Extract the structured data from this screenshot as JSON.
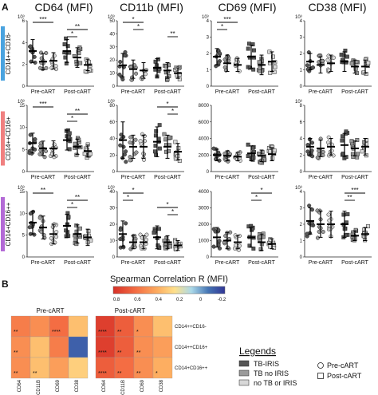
{
  "panel_labels": {
    "a": "A",
    "b": "B"
  },
  "column_titles": [
    "CD64 (MFI)",
    "CD11b (MFI)",
    "CD69 (MFI)",
    "CD38 (MFI)"
  ],
  "row_labels": [
    "CD14++CD16-",
    "CD14++CD16+",
    "CD14+CD16++"
  ],
  "row_label_colors": [
    "#4aa3df",
    "#f08080",
    "#b36ad6"
  ],
  "group_labels": [
    "Pre-cART",
    "Post-cART"
  ],
  "heatmap": {
    "title": "Spearman Correlation R (MFI)",
    "scale_ticks": [
      "0.8",
      "0.6",
      "0.4",
      "0.2",
      "0",
      "-0.2"
    ],
    "pre_label": "Pre-cART",
    "post_label": "Post-cART",
    "markers": [
      "CD64",
      "CD11B",
      "CD69",
      "CD38"
    ],
    "subsets": [
      "CD14++CD16-",
      "CD14++CD16+",
      "CD14+CD16++"
    ]
  },
  "legend": {
    "title": "Legends",
    "items": [
      "TB-IRIS",
      "TB no IRIS",
      "no TB or IRIS"
    ],
    "shape_items": [
      "Pre-cART",
      "Post-cART"
    ]
  },
  "chart_data": [
    {
      "type": "scatter",
      "title": "CD64 (MFI)",
      "y_ticks": [
        [
          "10³",
          "6",
          "4",
          "2",
          "0"
        ],
        [
          "10³",
          "15",
          "10",
          "5",
          "0"
        ],
        [
          "10³",
          "15",
          "10",
          "5",
          "0"
        ]
      ],
      "groups": [
        "TB-IRIS Pre-cART",
        "TB no IRIS Pre-cART",
        "no TB or IRIS Pre-cART",
        "TB-IRIS Post-cART",
        "TB no IRIS Post-cART",
        "no TB or IRIS Post-cART"
      ],
      "mean_sd_by_row": [
        [
          [
            4.3,
            1.4
          ],
          [
            3.0,
            1.0
          ],
          [
            3.1,
            1.0
          ],
          [
            4.3,
            1.4
          ],
          [
            3.5,
            1.2
          ],
          [
            2.6,
            0.7
          ]
        ],
        [
          [
            8.6,
            3.0
          ],
          [
            7.0,
            2.2
          ],
          [
            7.0,
            2.3
          ],
          [
            9.5,
            3.0
          ],
          [
            7.5,
            2.3
          ],
          [
            6.2,
            1.8
          ]
        ],
        [
          [
            10.5,
            3.5
          ],
          [
            9.0,
            3.5
          ],
          [
            7.0,
            3.0
          ],
          [
            9.5,
            3.5
          ],
          [
            7.0,
            2.8
          ],
          [
            6.0,
            2.5
          ]
        ]
      ],
      "significance": [
        [
          {
            "label": "***",
            "from": 0,
            "to": 2
          },
          {
            "label": "**",
            "from": 3,
            "to": 5
          },
          {
            "label": "*",
            "from": 3,
            "to": 4
          }
        ],
        [
          {
            "label": "***",
            "from": 0,
            "to": 2
          },
          {
            "label": "**",
            "from": 3,
            "to": 5
          },
          {
            "label": "*",
            "from": 3,
            "to": 4
          }
        ],
        [
          {
            "label": "**",
            "from": 0,
            "to": 2
          },
          {
            "label": "**",
            "from": 3,
            "to": 5
          },
          {
            "label": "*",
            "from": 3,
            "to": 4
          }
        ]
      ]
    },
    {
      "type": "scatter",
      "title": "CD11b (MFI)",
      "y_ticks": [
        [
          "10³",
          "50",
          "40",
          "30",
          "20",
          "10",
          "0"
        ],
        [
          "10³",
          "80",
          "60",
          "40",
          "20",
          "0"
        ],
        [
          "10³",
          "40",
          "30",
          "20",
          "10",
          "0"
        ]
      ],
      "groups": [
        "TB-IRIS Pre-cART",
        "TB no IRIS Pre-cART",
        "no TB or IRIS Pre-cART",
        "TB-IRIS Post-cART",
        "TB no IRIS Post-cART",
        "no TB or IRIS Post-cART"
      ],
      "mean_sd_by_row": [
        [
          [
            16,
            9
          ],
          [
            13,
            7
          ],
          [
            12,
            6
          ],
          [
            14,
            7
          ],
          [
            12,
            6
          ],
          [
            10,
            4
          ]
        ],
        [
          [
            38,
            22
          ],
          [
            30,
            14
          ],
          [
            30,
            14
          ],
          [
            36,
            18
          ],
          [
            30,
            14
          ],
          [
            24,
            10
          ]
        ],
        [
          [
            14,
            8
          ],
          [
            9,
            4
          ],
          [
            9,
            4
          ],
          [
            12,
            7
          ],
          [
            9,
            4
          ],
          [
            7,
            3
          ]
        ]
      ],
      "significance": [
        [
          {
            "label": "*",
            "from": 0,
            "to": 2
          },
          {
            "label": "*",
            "from": 1,
            "to": 2
          },
          {
            "label": "**",
            "from": 4,
            "to": 5
          }
        ],
        [
          {
            "label": "*",
            "from": 3,
            "to": 5
          },
          {
            "label": "*",
            "from": 4,
            "to": 5
          }
        ],
        [
          {
            "label": "*",
            "from": 0,
            "to": 2
          },
          {
            "label": "*",
            "from": 0,
            "to": 1
          },
          {
            "label": "*",
            "from": 3,
            "to": 5
          },
          {
            "label": "*",
            "from": 4,
            "to": 5
          }
        ]
      ]
    },
    {
      "type": "scatter",
      "title": "CD69 (MFI)",
      "y_ticks": [
        [
          "10³",
          "4",
          "3",
          "2",
          "1",
          "0"
        ],
        [
          "8000",
          "6000",
          "4000",
          "2000",
          "0"
        ],
        [
          "4000",
          "3000",
          "2000",
          "1000",
          "0"
        ]
      ],
      "groups": [
        "TB-IRIS Pre-cART",
        "TB no IRIS Pre-cART",
        "no TB or IRIS Pre-cART",
        "TB-IRIS Post-cART",
        "TB no IRIS Post-cART",
        "no TB or IRIS Post-cART"
      ],
      "mean_sd_by_row": [
        [
          [
            1.8,
            0.5
          ],
          [
            1.4,
            0.5
          ],
          [
            1.3,
            0.4
          ],
          [
            1.8,
            0.7
          ],
          [
            1.3,
            0.6
          ],
          [
            1.5,
            0.6
          ]
        ],
        [
          [
            2000,
            700
          ],
          [
            1900,
            600
          ],
          [
            1800,
            500
          ],
          [
            2200,
            900
          ],
          [
            1900,
            700
          ],
          [
            2100,
            800
          ]
        ],
        [
          [
            1200,
            600
          ],
          [
            1000,
            500
          ],
          [
            900,
            400
          ],
          [
            1200,
            600
          ],
          [
            900,
            500
          ],
          [
            800,
            300
          ]
        ]
      ],
      "significance": [
        [
          {
            "label": "***",
            "from": 0,
            "to": 2
          },
          {
            "label": "*",
            "from": 0,
            "to": 1
          }
        ],
        [],
        [
          {
            "label": "*",
            "from": 3,
            "to": 5
          },
          {
            "label": "*",
            "from": 3,
            "to": 4
          }
        ]
      ]
    },
    {
      "type": "scatter",
      "title": "CD38",
      "y_ticks": [
        [
          "10³",
          "4",
          "3",
          "2",
          "1",
          "0"
        ],
        [
          "10³",
          "8",
          "6",
          "4",
          "2",
          "0"
        ],
        [
          "10³",
          "4",
          "3",
          "2",
          "1",
          "0"
        ]
      ],
      "groups": [
        "TB-IRIS Pre-cART",
        "TB no IRIS Pre-cART",
        "no TB or IRIS Pre-cART",
        "TB-IRIS Post-cART",
        "TB no IRIS Post-cART",
        "no TB or IRIS Post-cART"
      ],
      "mean_sd_by_row": [
        [
          [
            1.5,
            0.5
          ],
          [
            1.3,
            0.5
          ],
          [
            1.4,
            0.5
          ],
          [
            1.5,
            0.6
          ],
          [
            1.2,
            0.4
          ],
          [
            1.2,
            0.4
          ]
        ],
        [
          [
            3.0,
            1.0
          ],
          [
            2.8,
            1.0
          ],
          [
            3.0,
            1.0
          ],
          [
            3.2,
            1.4
          ],
          [
            2.8,
            0.9
          ],
          [
            3.0,
            1.0
          ]
        ],
        [
          [
            2.2,
            0.8
          ],
          [
            2.0,
            0.8
          ],
          [
            2.0,
            0.8
          ],
          [
            2.0,
            0.8
          ],
          [
            1.3,
            0.3
          ],
          [
            1.4,
            0.4
          ]
        ]
      ],
      "significance": [
        [],
        [],
        [
          {
            "label": "***",
            "from": 3,
            "to": 5
          },
          {
            "label": "**",
            "from": 3,
            "to": 4
          }
        ]
      ]
    },
    {
      "type": "heatmap",
      "title": "Spearman Correlation R (MFI)",
      "rows": [
        "CD14++CD16-",
        "CD14++CD16+",
        "CD14+CD16++"
      ],
      "columns": [
        "CD64",
        "CD11B",
        "CD69",
        "CD38"
      ],
      "pre_cART": [
        [
          0.55,
          0.5,
          0.6,
          0.35
        ],
        [
          0.5,
          0.35,
          0.55,
          -0.1
        ],
        [
          0.5,
          0.35,
          0.45,
          0.3
        ]
      ],
      "post_cART": [
        [
          0.75,
          0.65,
          0.5,
          0.35
        ],
        [
          0.75,
          0.65,
          0.5,
          0.45
        ],
        [
          0.65,
          0.6,
          0.5,
          0.4
        ]
      ],
      "pre_stars": [
        [
          "**",
          "",
          "****",
          ""
        ],
        [
          "**",
          "",
          "",
          ""
        ],
        [
          "**",
          "**",
          "",
          ""
        ]
      ],
      "post_stars": [
        [
          "****",
          "**",
          "*",
          ""
        ],
        [
          "****",
          "**",
          "**",
          ""
        ],
        [
          "****",
          "**",
          "**",
          "*"
        ]
      ]
    }
  ]
}
